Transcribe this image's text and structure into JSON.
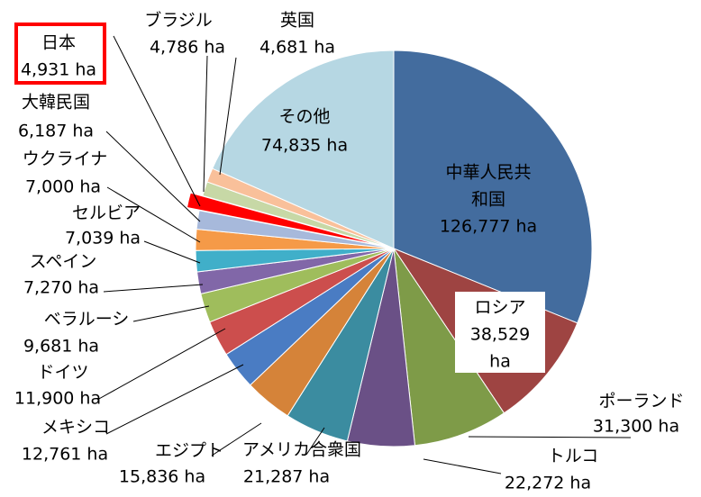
{
  "chart_data": {
    "type": "pie",
    "unit": "ha",
    "slices": [
      {
        "label": "中華人民共和国",
        "value": 126777,
        "value_text": "126,777 ha",
        "color": "#436c9e"
      },
      {
        "label": "ロシア",
        "value": 38529,
        "value_text": "38,529 ha",
        "color": "#9e4442"
      },
      {
        "label": "ポーランド",
        "value": 31300,
        "value_text": "31,300 ha",
        "color": "#7e9b48"
      },
      {
        "label": "トルコ",
        "value": 22272,
        "value_text": "22,272 ha",
        "color": "#6a5086"
      },
      {
        "label": "アメリカ合衆国",
        "value": 21287,
        "value_text": "21,287 ha",
        "color": "#3b8ca0"
      },
      {
        "label": "エジプト",
        "value": 15836,
        "value_text": "15,836 ha",
        "color": "#d58339"
      },
      {
        "label": "メキシコ",
        "value": 12761,
        "value_text": "12,761 ha",
        "color": "#4a7cc3"
      },
      {
        "label": "ドイツ",
        "value": 11900,
        "value_text": "11,900 ha",
        "color": "#cc4e4d"
      },
      {
        "label": "ベラルーシ",
        "value": 9681,
        "value_text": "9,681 ha",
        "color": "#9fbd5c"
      },
      {
        "label": "スペイン",
        "value": 7270,
        "value_text": "7,270 ha",
        "color": "#8167a8"
      },
      {
        "label": "セルビア",
        "value": 7039,
        "value_text": "7,039 ha",
        "color": "#40afc9"
      },
      {
        "label": "ウクライナ",
        "value": 7000,
        "value_text": "7,000 ha",
        "color": "#f59a48"
      },
      {
        "label": "大韓民国",
        "value": 6187,
        "value_text": "6,187 ha",
        "color": "#a7b9db"
      },
      {
        "label": "日本",
        "value": 4931,
        "value_text": "4,931 ha",
        "color": "#ff0000",
        "highlight": true
      },
      {
        "label": "ブラジル",
        "value": 4786,
        "value_text": "4,786 ha",
        "color": "#c7d8a6"
      },
      {
        "label": "英国",
        "value": 4681,
        "value_text": "4,681 ha",
        "color": "#f9c09a"
      },
      {
        "label": "その他",
        "value": 74835,
        "value_text": "74,835 ha",
        "color": "#b6d7e3"
      }
    ]
  }
}
